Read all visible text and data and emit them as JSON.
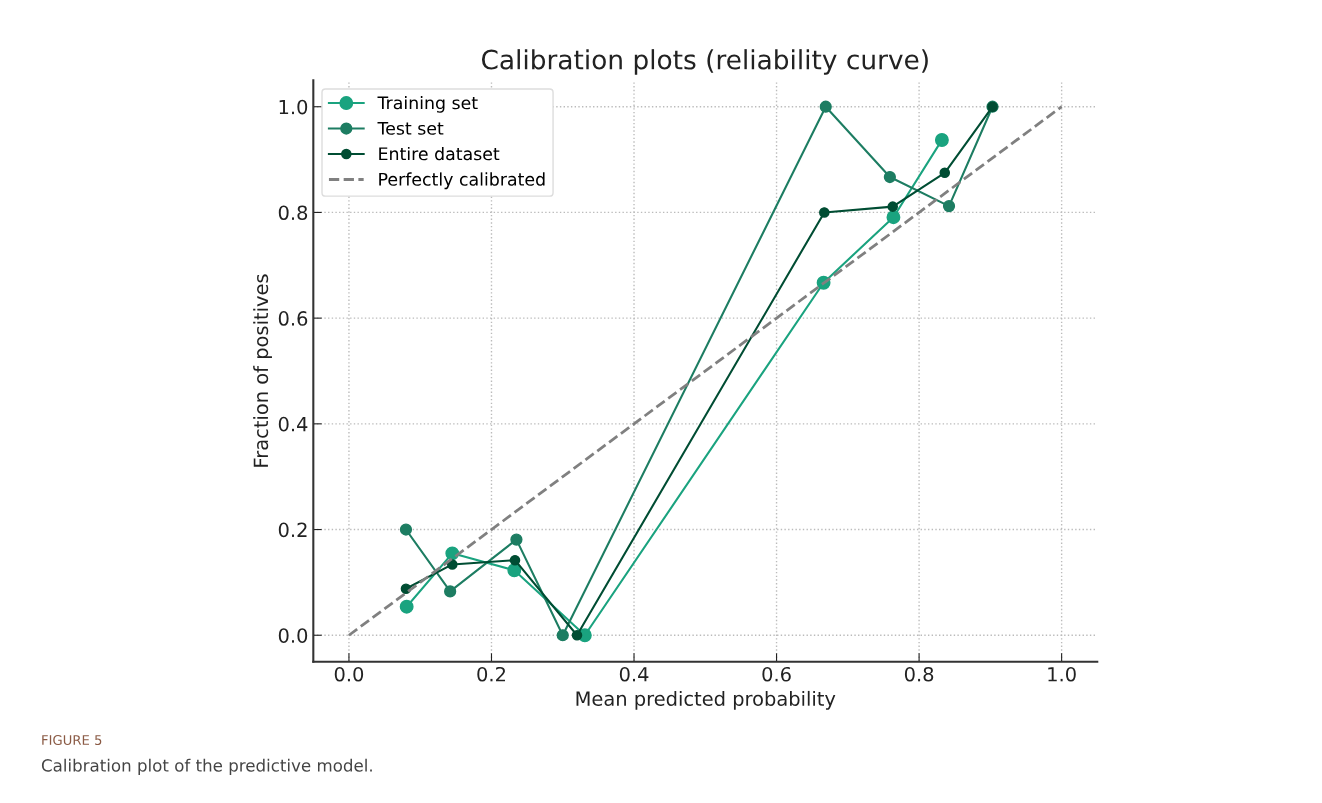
{
  "chart_data": {
    "type": "line",
    "title": "Calibration plots (reliability curve)",
    "xlabel": "Mean predicted probability",
    "ylabel": "Fraction of positives",
    "xlim": [
      -0.05,
      1.05
    ],
    "ylim": [
      -0.05,
      1.05
    ],
    "xticks": [
      {
        "value": 0,
        "label": "0.0"
      },
      0.2,
      0.4,
      0.6,
      0.8,
      {
        "value": 1,
        "label": "1.0"
      }
    ],
    "yticks": [
      {
        "value": 0,
        "label": "0.0"
      },
      0.2,
      0.4,
      0.6,
      0.8,
      {
        "value": 1,
        "label": "1.0"
      }
    ],
    "grid": true,
    "legend": "top left",
    "marker": "circle",
    "series": [
      {
        "name": "Training set",
        "color": "#1aa37f",
        "x": [
          0.081,
          0.145,
          0.232,
          0.331,
          0.666,
          0.764,
          0.832
        ],
        "values": [
          0.054,
          0.155,
          0.123,
          0,
          0.667,
          0.791,
          0.937
        ]
      },
      {
        "name": "Test set",
        "color": "#1d7d62",
        "x": [
          0.08,
          0.142,
          0.235,
          0.3,
          0.669,
          0.759,
          0.842,
          0.903
        ],
        "values": [
          0.2,
          0.083,
          0.181,
          0,
          1.0,
          0.867,
          0.812,
          1.0
        ]
      },
      {
        "name": "Entire dataset",
        "color": "#004d33",
        "x": [
          0.08,
          0.145,
          0.233,
          0.32,
          0.667,
          0.763,
          0.836,
          0.903
        ],
        "values": [
          0.088,
          0.134,
          0.142,
          0,
          0.8,
          0.811,
          0.875,
          1.0
        ]
      },
      {
        "name": "Perfectly calibrated",
        "color": "#808080",
        "x": [
          0,
          1
        ],
        "values": [
          0,
          1
        ],
        "line_style": "dashed",
        "marker": "none"
      }
    ],
    "annotations": [
      "FIGURE 5",
      "Calibration plot of the predictive model."
    ]
  }
}
